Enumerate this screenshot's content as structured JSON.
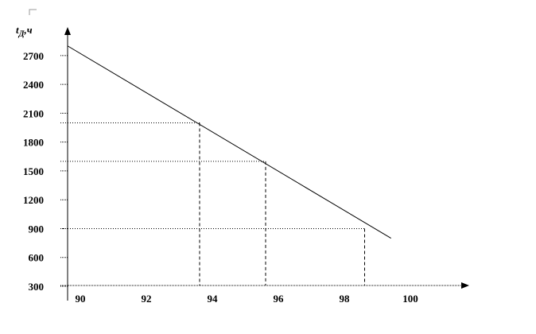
{
  "chart_data": {
    "type": "line",
    "title": "",
    "xlabel": "",
    "ylabel": {
      "main": "t",
      "sub": "Д",
      "unit": ",ч"
    },
    "xlim": [
      90,
      101.7
    ],
    "ylim": [
      300,
      2900
    ],
    "x_ticks": [
      "90",
      "92",
      "94",
      "96",
      "98",
      "100"
    ],
    "y_ticks": [
      "2700",
      "2400",
      "2100",
      "1800",
      "1500",
      "1200",
      "900",
      "600",
      "300"
    ],
    "series": [
      {
        "x": [
          90,
          99.8
        ],
        "y": [
          2800,
          800
        ]
      }
    ],
    "reference_points": [
      {
        "x": 94,
        "y": 2000
      },
      {
        "x": 96,
        "y": 1600
      },
      {
        "x": 99,
        "y": 900
      }
    ],
    "grid": false,
    "colors": {
      "line": "#000000",
      "guides": "#000000",
      "corner_mark": "#9a9a9a"
    }
  }
}
